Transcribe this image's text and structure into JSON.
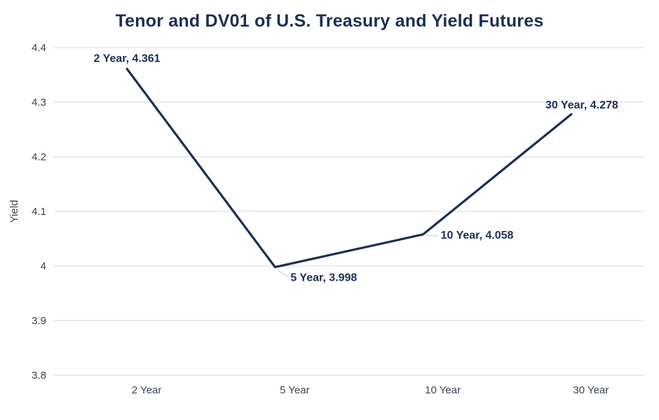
{
  "chart_data": {
    "type": "line",
    "title": "Tenor and DV01 of U.S. Treasury and Yield Futures",
    "categories": [
      "2 Year",
      "5 Year",
      "10 Year",
      "30 Year"
    ],
    "series": [
      {
        "name": "Yield",
        "values": [
          4.361,
          3.998,
          4.058,
          4.278
        ]
      }
    ],
    "xlabel": "",
    "ylabel": "Yield",
    "ylim": [
      3.8,
      4.4
    ],
    "yticks": [
      {
        "value": 4.4,
        "label": "4.4"
      },
      {
        "value": 4.3,
        "label": "4.3"
      },
      {
        "value": 4.2,
        "label": "4.2"
      },
      {
        "value": 4.1,
        "label": "4.1"
      },
      {
        "value": 4.0,
        "label": "4"
      },
      {
        "value": 3.9,
        "label": "3.9"
      },
      {
        "value": 3.8,
        "label": "3.8"
      }
    ],
    "grid": true,
    "legend": "none",
    "colors": {
      "line": "#1b3055",
      "grid": "#d9d9d9",
      "axis_text": "#3d4551",
      "data_label": "#1b3055",
      "leader": "#c9c9c9",
      "background": "#ffffff"
    },
    "data_labels": [
      {
        "text": "2 Year, 4.361",
        "position": "above",
        "leader": false
      },
      {
        "text": "5 Year, 3.998",
        "position": "below-right",
        "leader": true
      },
      {
        "text": "10 Year, 4.058",
        "position": "right",
        "leader": true
      },
      {
        "text": "30 Year, 4.278",
        "position": "above-right",
        "leader": false
      }
    ]
  }
}
